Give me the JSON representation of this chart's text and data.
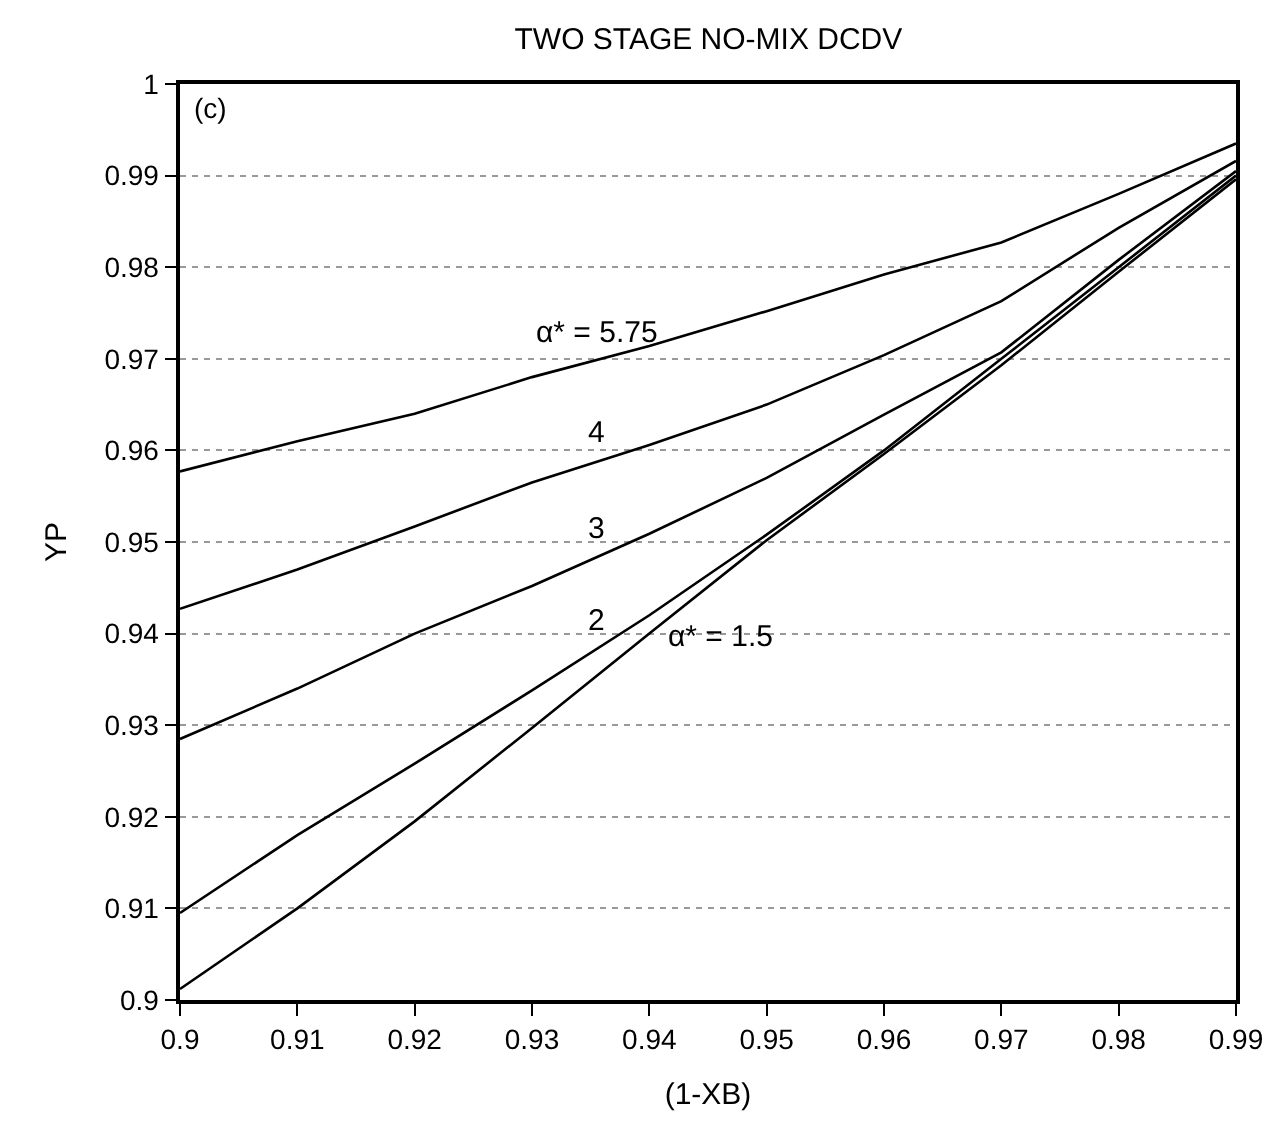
{
  "chart_data": {
    "type": "line",
    "title": "TWO STAGE NO-MIX DCDV",
    "xlabel": "(1-XB)",
    "ylabel": "YP",
    "x": [
      0.9,
      0.91,
      0.92,
      0.93,
      0.94,
      0.95,
      0.96,
      0.97,
      0.98,
      0.99
    ],
    "series": [
      {
        "name": "α* = 5.75",
        "color": "#000000",
        "values": [
          0.9577,
          0.961,
          0.964,
          0.968,
          0.9714,
          0.9752,
          0.9792,
          0.9827,
          0.988,
          0.9935
        ]
      },
      {
        "name": "4",
        "color": "#000000",
        "values": [
          0.9427,
          0.947,
          0.9517,
          0.9565,
          0.9606,
          0.965,
          0.9704,
          0.9763,
          0.9843,
          0.9916
        ]
      },
      {
        "name": "3",
        "color": "#000000",
        "values": [
          0.9285,
          0.934,
          0.94,
          0.9452,
          0.9509,
          0.957,
          0.9639,
          0.9707,
          0.9808,
          0.9905
        ]
      },
      {
        "name": "2",
        "color": "#000000",
        "values": [
          0.9095,
          0.918,
          0.9258,
          0.9338,
          0.942,
          0.9508,
          0.96,
          0.97,
          0.98,
          0.99
        ]
      },
      {
        "name": "α* = 1.5",
        "color": "#000000",
        "values": [
          0.9012,
          0.91,
          0.9195,
          0.9297,
          0.94,
          0.9502,
          0.9596,
          0.9693,
          0.9795,
          0.9896
        ]
      }
    ],
    "xlim": [
      0.9,
      0.99
    ],
    "xticks": [
      0.9,
      0.91,
      0.92,
      0.93,
      0.94,
      0.95,
      0.96,
      0.97,
      0.98,
      0.99
    ],
    "ylim": [
      0.9,
      1
    ],
    "yticks": [
      0.9,
      0.91,
      0.92,
      0.93,
      0.94,
      0.95,
      0.96,
      0.97,
      0.98,
      0.99,
      1
    ],
    "grid": "y",
    "legend": false,
    "marker": "none",
    "line_style": "solid",
    "annotations": [
      "(c)"
    ]
  }
}
